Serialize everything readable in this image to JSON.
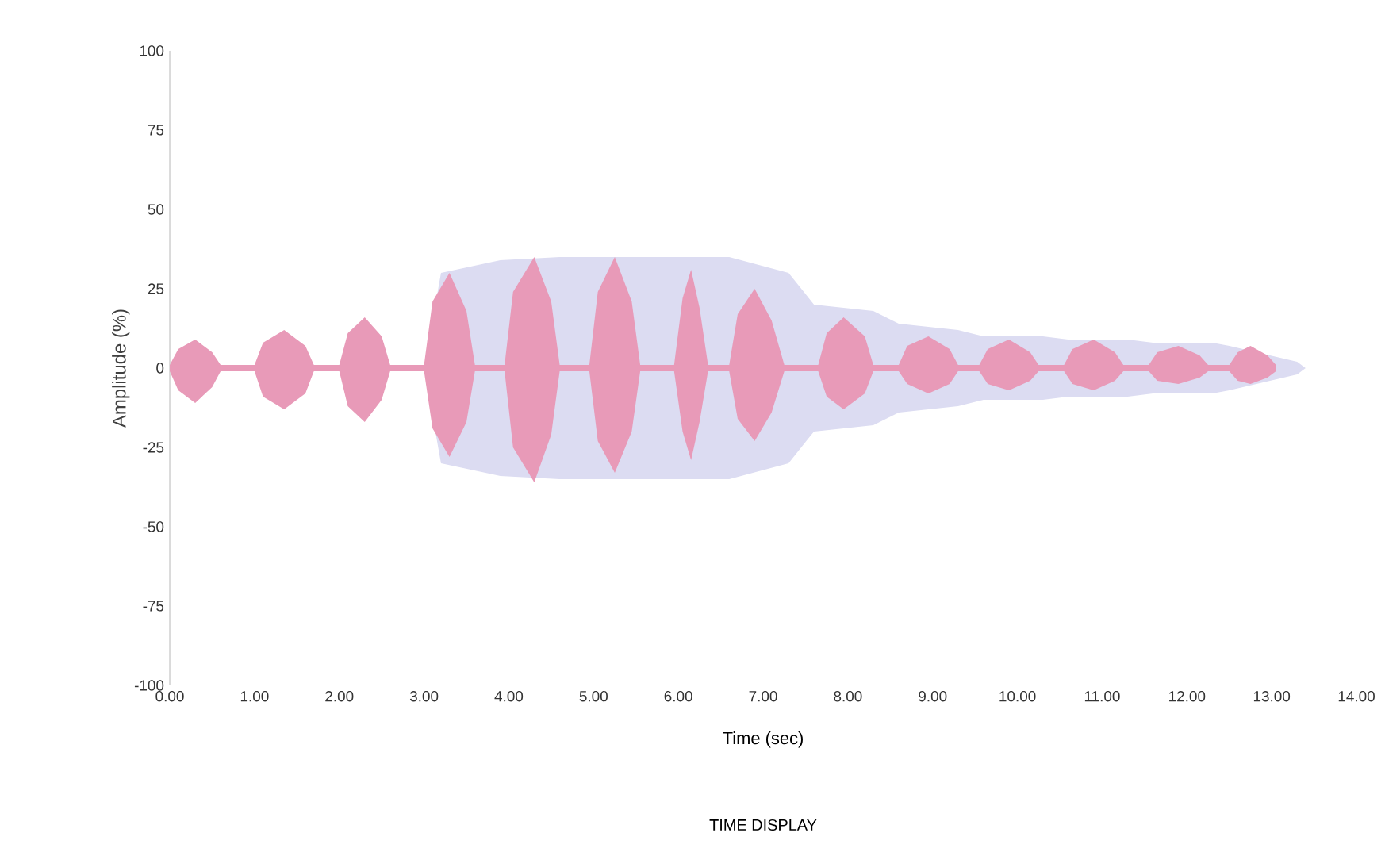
{
  "chart_data": {
    "type": "area",
    "title": "TIME DISPLAY",
    "xlabel": "Time (sec)",
    "ylabel": "Amplitude (%)",
    "xlim": [
      0,
      14
    ],
    "ylim": [
      -100,
      100
    ],
    "xticks": [
      {
        "value": 0,
        "label": "0.00"
      },
      {
        "value": 1,
        "label": "1.00"
      },
      {
        "value": 2,
        "label": "2.00"
      },
      {
        "value": 3,
        "label": "3.00"
      },
      {
        "value": 4,
        "label": "4.00"
      },
      {
        "value": 5,
        "label": "5.00"
      },
      {
        "value": 6,
        "label": "6.00"
      },
      {
        "value": 7,
        "label": "7.00"
      },
      {
        "value": 8,
        "label": "8.00"
      },
      {
        "value": 9,
        "label": "9.00"
      },
      {
        "value": 10,
        "label": "10.00"
      },
      {
        "value": 11,
        "label": "11.00"
      },
      {
        "value": 12,
        "label": "12.00"
      },
      {
        "value": 13,
        "label": "13.00"
      },
      {
        "value": 14,
        "label": "14.00"
      }
    ],
    "yticks": [
      -100,
      -75,
      -50,
      -25,
      0,
      25,
      50,
      75,
      100
    ],
    "series": [
      {
        "color": "#dcdcf2",
        "x": [
          3.0,
          3.2,
          3.9,
          4.6,
          5.5,
          6.6,
          7.3,
          7.6,
          8.3,
          8.6,
          9.3,
          9.6,
          10.3,
          10.6,
          11.3,
          11.6,
          12.3,
          12.5,
          13.3,
          13.4
        ],
        "values": [
          0,
          30,
          34,
          35,
          35,
          35,
          30,
          20,
          18,
          14,
          12,
          10,
          10,
          9,
          9,
          8,
          8,
          7,
          2,
          0
        ]
      },
      {
        "color": "#dcdcf2",
        "x": [
          3.0,
          3.2,
          3.9,
          4.6,
          5.5,
          6.6,
          7.3,
          7.6,
          8.3,
          8.6,
          9.3,
          9.6,
          10.3,
          10.6,
          11.3,
          11.6,
          12.3,
          12.5,
          13.3,
          13.4
        ],
        "values": [
          0,
          -30,
          -34,
          -35,
          -35,
          -35,
          -30,
          -20,
          -18,
          -14,
          -12,
          -10,
          -10,
          -9,
          -9,
          -8,
          -8,
          -7,
          -2,
          0
        ]
      },
      {
        "color": "#e89ab8",
        "x": [
          0,
          0.1,
          0.3,
          0.5,
          0.6,
          1.0,
          1.1,
          1.35,
          1.6,
          1.7,
          2.0,
          2.1,
          2.3,
          2.5,
          2.6,
          3.0,
          3.1,
          3.3,
          3.5,
          3.6,
          3.95,
          4.05,
          4.3,
          4.5,
          4.6,
          4.95,
          5.05,
          5.25,
          5.45,
          5.55,
          5.95,
          6.05,
          6.15,
          6.25,
          6.35,
          6.6,
          6.7,
          6.9,
          7.1,
          7.25,
          7.65,
          7.75,
          7.95,
          8.2,
          8.3,
          8.6,
          8.7,
          8.95,
          9.2,
          9.3,
          9.55,
          9.65,
          9.9,
          10.15,
          10.25,
          10.55,
          10.65,
          10.9,
          11.15,
          11.25,
          11.55,
          11.65,
          11.9,
          12.15,
          12.25,
          12.5,
          12.6,
          12.75,
          12.95,
          13.05
        ],
        "values": [
          1,
          6,
          9,
          5,
          1,
          1,
          8,
          12,
          7,
          1,
          1,
          11,
          16,
          10,
          1,
          1,
          21,
          30,
          18,
          1,
          1,
          24,
          35,
          21,
          1,
          1,
          24,
          35,
          21,
          1,
          1,
          22,
          31,
          19,
          1,
          1,
          17,
          25,
          15,
          1,
          1,
          11,
          16,
          10,
          1,
          1,
          7,
          10,
          6,
          1,
          1,
          6,
          9,
          5,
          1,
          1,
          6,
          9,
          5,
          1,
          1,
          5,
          7,
          4,
          1,
          1,
          5,
          7,
          4,
          1
        ]
      },
      {
        "color": "#e89ab8",
        "x": [
          0,
          0.1,
          0.3,
          0.5,
          0.6,
          1.0,
          1.1,
          1.35,
          1.6,
          1.7,
          2.0,
          2.1,
          2.3,
          2.5,
          2.6,
          3.0,
          3.1,
          3.3,
          3.5,
          3.6,
          3.95,
          4.05,
          4.3,
          4.5,
          4.6,
          4.95,
          5.05,
          5.25,
          5.45,
          5.55,
          5.95,
          6.05,
          6.15,
          6.25,
          6.35,
          6.6,
          6.7,
          6.9,
          7.1,
          7.25,
          7.65,
          7.75,
          7.95,
          8.2,
          8.3,
          8.6,
          8.7,
          8.95,
          9.2,
          9.3,
          9.55,
          9.65,
          9.9,
          10.15,
          10.25,
          10.55,
          10.65,
          10.9,
          11.15,
          11.25,
          11.55,
          11.65,
          11.9,
          12.15,
          12.25,
          12.5,
          12.6,
          12.75,
          12.95,
          13.05
        ],
        "values": [
          -1,
          -7,
          -11,
          -6,
          -1,
          -1,
          -9,
          -13,
          -8,
          -1,
          -1,
          -12,
          -17,
          -10,
          -1,
          -1,
          -19,
          -28,
          -17,
          -1,
          -1,
          -25,
          -36,
          -21,
          -1,
          -1,
          -23,
          -33,
          -20,
          -1,
          -1,
          -20,
          -29,
          -17,
          -1,
          -1,
          -16,
          -23,
          -14,
          -1,
          -1,
          -9,
          -13,
          -8,
          -1,
          -1,
          -5,
          -8,
          -5,
          -1,
          -1,
          -5,
          -7,
          -4,
          -1,
          -1,
          -5,
          -7,
          -4,
          -1,
          -1,
          -4,
          -5,
          -3,
          -1,
          -1,
          -4,
          -5,
          -3,
          -1
        ]
      }
    ]
  }
}
